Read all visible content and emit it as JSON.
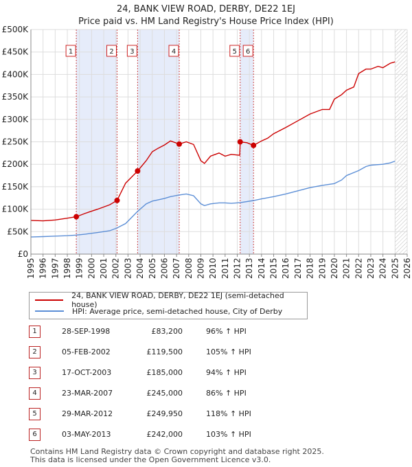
{
  "header": {
    "title": "24, BANK VIEW ROAD, DERBY, DE22 1EJ",
    "subtitle": "Price paid vs. HM Land Registry's House Price Index (HPI)"
  },
  "colors": {
    "property": "#cc0000",
    "hpi": "#5b8ed6",
    "shade": "#e6ecfa",
    "marker_border": "#cc2222"
  },
  "legend": {
    "property_label": "24, BANK VIEW ROAD, DERBY, DE22 1EJ (semi-detached house)",
    "hpi_label": "HPI: Average price, semi-detached house, City of Derby"
  },
  "sales": [
    {
      "num": "1",
      "date": "28-SEP-1998",
      "price": "£83,200",
      "pct": "96% ↑ HPI"
    },
    {
      "num": "2",
      "date": "05-FEB-2002",
      "price": "£119,500",
      "pct": "105% ↑ HPI"
    },
    {
      "num": "3",
      "date": "17-OCT-2003",
      "price": "£185,000",
      "pct": "94% ↑ HPI"
    },
    {
      "num": "4",
      "date": "23-MAR-2007",
      "price": "£245,000",
      "pct": "86% ↑ HPI"
    },
    {
      "num": "5",
      "date": "29-MAR-2012",
      "price": "£249,950",
      "pct": "118% ↑ HPI"
    },
    {
      "num": "6",
      "date": "03-MAY-2013",
      "price": "£242,000",
      "pct": "103% ↑ HPI"
    }
  ],
  "footer": {
    "line1": "Contains HM Land Registry data © Crown copyright and database right 2025.",
    "line2": "This data is licensed under the Open Government Licence v3.0."
  },
  "chart_data": {
    "type": "line",
    "title": "24, BANK VIEW ROAD, DERBY, DE22 1EJ",
    "xlabel": "",
    "ylabel": "",
    "xlim": [
      1995,
      2026
    ],
    "ylim": [
      0,
      500000
    ],
    "y_ticks": [
      0,
      50000,
      100000,
      150000,
      200000,
      250000,
      300000,
      350000,
      400000,
      450000,
      500000
    ],
    "y_tick_labels": [
      "£0",
      "£50K",
      "£100K",
      "£150K",
      "£200K",
      "£250K",
      "£300K",
      "£350K",
      "£400K",
      "£450K",
      "£500K"
    ],
    "x_ticks": [
      "1995",
      "1996",
      "1997",
      "1998",
      "1999",
      "2000",
      "2001",
      "2002",
      "2003",
      "2004",
      "2005",
      "2006",
      "2007",
      "2008",
      "2009",
      "2010",
      "2011",
      "2012",
      "2013",
      "2014",
      "2015",
      "2016",
      "2017",
      "2018",
      "2019",
      "2020",
      "2021",
      "2022",
      "2023",
      "2024",
      "2025",
      "2026"
    ],
    "shaded_ranges": [
      [
        1998.74,
        2002.1
      ],
      [
        2003.79,
        2007.22
      ],
      [
        2012.24,
        2013.34
      ]
    ],
    "hatched_after": 2025.0,
    "series": [
      {
        "name": "24, BANK VIEW ROAD, DERBY, DE22 1EJ (semi-detached house)",
        "x": [
          1995.0,
          1996.0,
          1997.0,
          1998.0,
          1998.74,
          1999.5,
          2000.5,
          2001.5,
          2002.1,
          2002.8,
          2003.79,
          2004.5,
          2005.0,
          2005.5,
          2006.0,
          2006.5,
          2007.22,
          2007.8,
          2008.4,
          2009.0,
          2009.3,
          2009.8,
          2010.5,
          2011.0,
          2011.5,
          2012.2,
          2012.24,
          2012.8,
          2013.34,
          2014.0,
          2014.5,
          2015.0,
          2016.0,
          2017.0,
          2018.0,
          2019.0,
          2019.6,
          2020.0,
          2020.6,
          2021.0,
          2021.6,
          2022.0,
          2022.6,
          2023.0,
          2023.6,
          2024.0,
          2024.6,
          2025.0
        ],
        "values": [
          75000,
          74000,
          76000,
          80000,
          83200,
          91000,
          100000,
          110000,
          119500,
          158000,
          185000,
          208000,
          228000,
          236000,
          243000,
          252000,
          245000,
          250000,
          244000,
          208000,
          202000,
          218000,
          225000,
          218000,
          222000,
          220000,
          249950,
          248000,
          242000,
          252000,
          258000,
          268000,
          282000,
          297000,
          312000,
          322000,
          322000,
          345000,
          355000,
          365000,
          372000,
          402000,
          412000,
          412000,
          418000,
          415000,
          425000,
          428000
        ]
      },
      {
        "name": "HPI: Average price, semi-detached house, City of Derby",
        "x": [
          1995.0,
          1996.0,
          1997.0,
          1998.0,
          1998.74,
          1999.5,
          2000.5,
          2001.5,
          2002.1,
          2002.8,
          2003.79,
          2004.5,
          2005.0,
          2005.5,
          2006.0,
          2006.5,
          2007.22,
          2007.8,
          2008.4,
          2009.0,
          2009.3,
          2009.8,
          2010.5,
          2011.0,
          2011.5,
          2012.24,
          2013.34,
          2014.0,
          2015.0,
          2016.0,
          2017.0,
          2018.0,
          2019.0,
          2020.0,
          2020.6,
          2021.0,
          2022.0,
          2022.6,
          2023.0,
          2024.0,
          2024.6,
          2025.0
        ],
        "values": [
          38000,
          39000,
          40000,
          41000,
          42400,
          44500,
          48000,
          52000,
          58300,
          68000,
          95300,
          112000,
          118000,
          121000,
          124000,
          128000,
          131700,
          134000,
          130000,
          112000,
          108000,
          112000,
          114000,
          114000,
          113000,
          114600,
          119200,
          123000,
          128000,
          134000,
          141000,
          148000,
          153000,
          157000,
          165000,
          175000,
          186000,
          195000,
          198000,
          200000,
          203000,
          207000
        ]
      }
    ]
  }
}
